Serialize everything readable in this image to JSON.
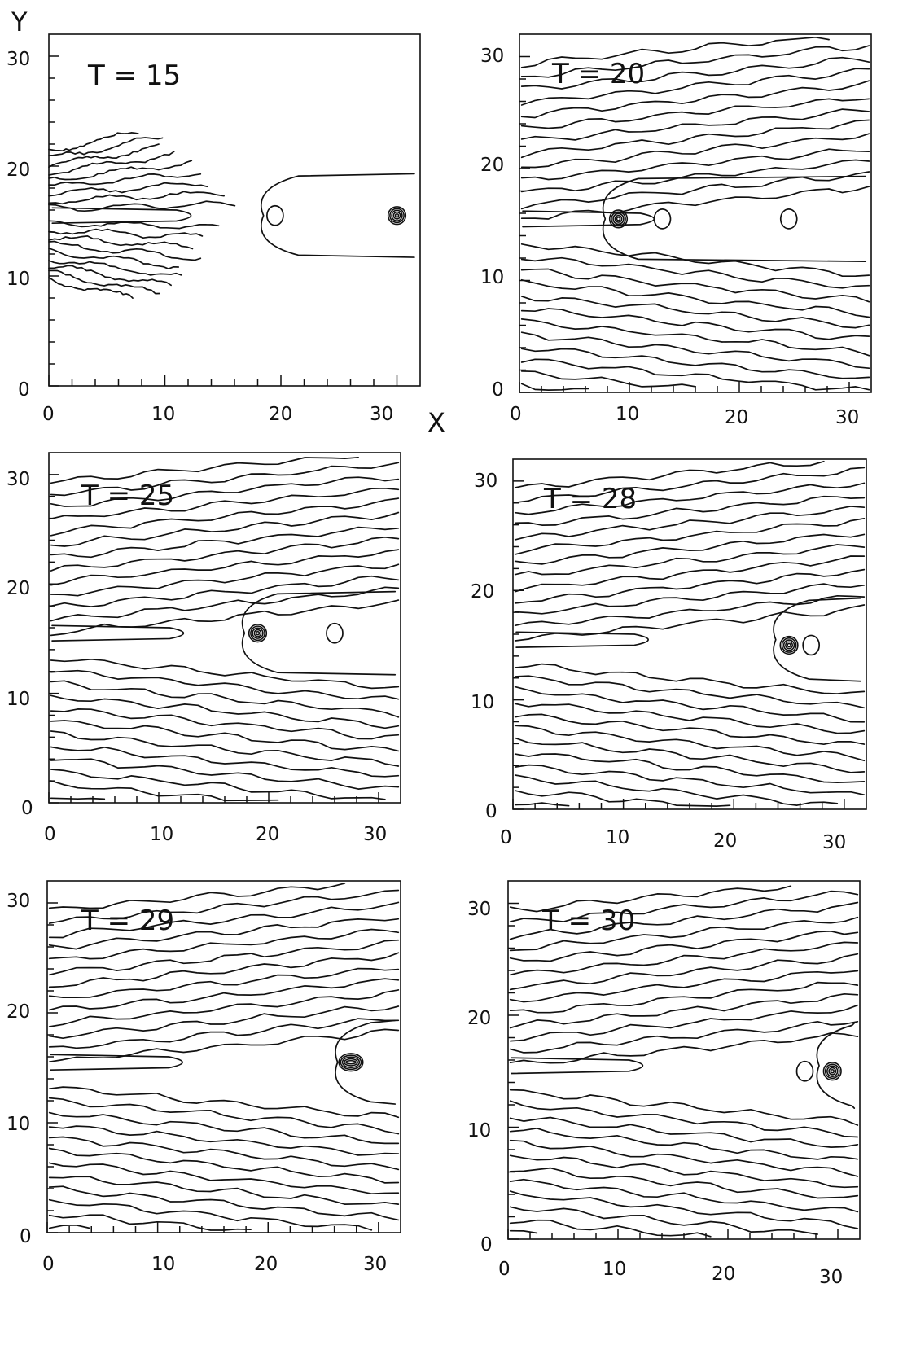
{
  "figure": {
    "y_axis_label": "Y",
    "x_axis_label": "X"
  },
  "panels": [
    {
      "time_label": "T = 15",
      "x_ticks": [
        "0",
        "10",
        "20",
        "30"
      ],
      "y_ticks": [
        "0",
        "10",
        "20",
        "30"
      ],
      "features": {
        "fringe_bands": "horizontal fan, left side",
        "closed_loops": [
          [
            19.5,
            15.5
          ]
        ],
        "vortex_cores": [
          [
            30,
            15.5
          ]
        ]
      }
    },
    {
      "time_label": "T = 20",
      "x_ticks": [
        "0",
        "10",
        "20",
        "30"
      ],
      "y_ticks": [
        "0",
        "10",
        "20",
        "30"
      ],
      "features": {
        "fringe_bands": "full field, tilted",
        "closed_loops": [
          [
            13,
            15.5
          ],
          [
            24.5,
            15.5
          ]
        ],
        "vortex_cores": [
          [
            9,
            15.5
          ]
        ]
      }
    },
    {
      "time_label": "T = 25",
      "x_ticks": [
        "0",
        "10",
        "20",
        "30"
      ],
      "y_ticks": [
        "0",
        "10",
        "20",
        "30"
      ],
      "features": {
        "fringe_bands": "full field, tilted",
        "closed_loops": [
          [
            26,
            15.5
          ]
        ],
        "vortex_cores": [
          [
            19,
            15.5
          ]
        ]
      }
    },
    {
      "time_label": "T = 28",
      "x_ticks": [
        "0",
        "10",
        "20",
        "30"
      ],
      "y_ticks": [
        "0",
        "10",
        "20",
        "30"
      ],
      "features": {
        "fringe_bands": "full field, tilted",
        "closed_loops": [
          [
            27,
            15
          ]
        ],
        "vortex_cores": [
          [
            25,
            15
          ]
        ]
      }
    },
    {
      "time_label": "T = 29",
      "x_ticks": [
        "0",
        "10",
        "20",
        "30"
      ],
      "y_ticks": [
        "0",
        "10",
        "20",
        "30"
      ],
      "features": {
        "fringe_bands": "full field, tilted",
        "closed_loops": [],
        "vortex_cores": [
          [
            27.5,
            15.5
          ]
        ]
      }
    },
    {
      "time_label": "T = 30",
      "x_ticks": [
        "0",
        "10",
        "20",
        "30"
      ],
      "y_ticks": [
        "0",
        "10",
        "20",
        "30"
      ],
      "features": {
        "fringe_bands": "full field, tilted",
        "closed_loops": [
          [
            27,
            15
          ]
        ],
        "vortex_cores": [
          [
            29.5,
            15
          ]
        ]
      }
    }
  ]
}
